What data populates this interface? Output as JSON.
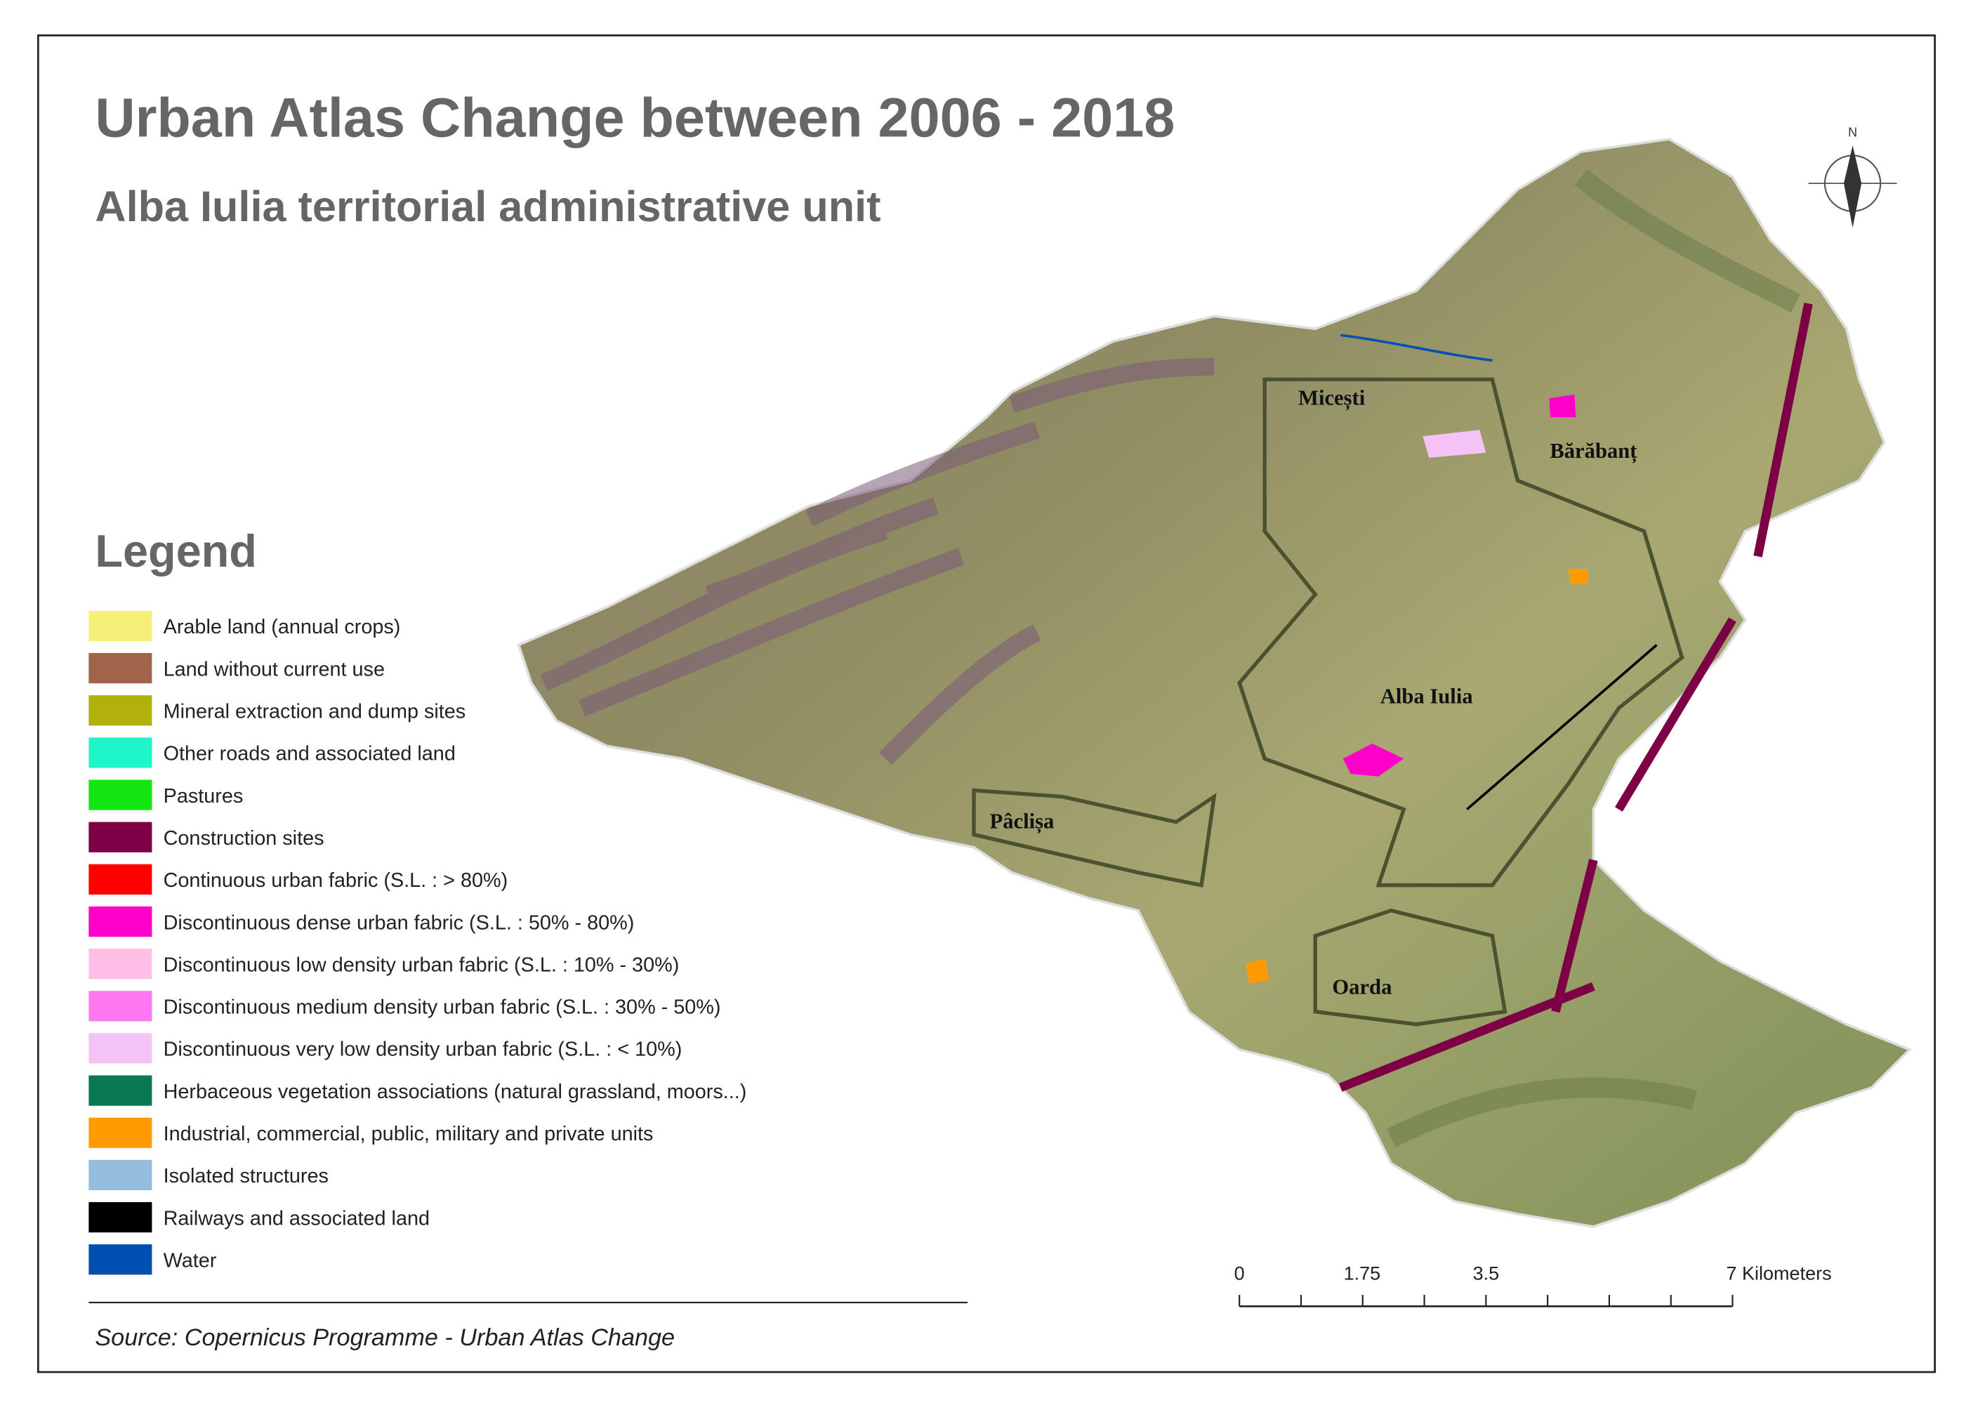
{
  "title": "Urban Atlas Change between 2006 - 2018",
  "subtitle": "Alba Iulia territorial administrative unit",
  "legend": {
    "title": "Legend",
    "items": [
      {
        "label": "Arable land (annual crops)",
        "color": "#f5f07a"
      },
      {
        "label": "Land without current use",
        "color": "#a0644a"
      },
      {
        "label": "Mineral extraction and dump sites",
        "color": "#b2b00a"
      },
      {
        "label": "Other roads and associated land",
        "color": "#1ef5c8"
      },
      {
        "label": "Pastures",
        "color": "#14e614"
      },
      {
        "label": "Construction sites",
        "color": "#7d0046"
      },
      {
        "label": "Continuous urban fabric (S.L. : > 80%)",
        "color": "#ff0000"
      },
      {
        "label": "Discontinuous dense urban fabric (S.L. : 50% -  80%)",
        "color": "#ff00c8"
      },
      {
        "label": "Discontinuous low density urban fabric (S.L. : 10% - 30%)",
        "color": "#ffbee6"
      },
      {
        "label": "Discontinuous medium density urban fabric (S.L. : 30% - 50%)",
        "color": "#ff78f0"
      },
      {
        "label": "Discontinuous very low density urban fabric (S.L. : < 10%)",
        "color": "#f5c3f5"
      },
      {
        "label": "Herbaceous vegetation associations (natural grassland, moors...)",
        "color": "#0a7850"
      },
      {
        "label": "Industrial, commercial, public, military and private units",
        "color": "#ff9b00"
      },
      {
        "label": "Isolated structures",
        "color": "#96bedc"
      },
      {
        "label": "Railways and associated land",
        "color": "#000000"
      },
      {
        "label": "Water",
        "color": "#0050b4"
      }
    ]
  },
  "places": [
    "Micești",
    "Bărăbanț",
    "Alba Iulia",
    "Pâclișa",
    "Oarda"
  ],
  "north_label": "N",
  "scale_bar": [
    "0",
    "1.75",
    "3.5",
    "7 Kilometers"
  ],
  "source": "Source: Copernicus Programme - Urban Atlas Change"
}
